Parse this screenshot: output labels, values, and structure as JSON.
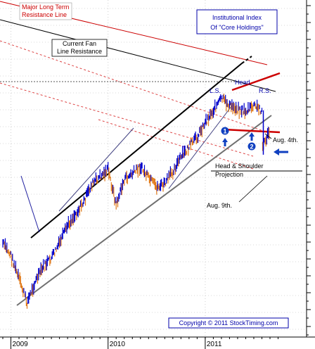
{
  "chart_data": {
    "type": "line",
    "title": "Institutional Index Of \"Core Holdings\"",
    "title_lines": [
      "Institutional Index",
      "Of \"Core Holdings\""
    ],
    "x_tick_labels": [
      "2009",
      "2010",
      "2011"
    ],
    "x_range": [
      "2008-12",
      "2011-09"
    ],
    "grid": "dotted",
    "series": [
      {
        "color": "#0000cc",
        "down_color": "#e07818",
        "points": [
          [
            "2008-12",
            0.5
          ],
          [
            "2009-01",
            0.42
          ],
          [
            "2009-02",
            0.26
          ],
          [
            "2009-03",
            0.1
          ],
          [
            "2009-04",
            0.24
          ],
          [
            "2009-05",
            0.34
          ],
          [
            "2009-06",
            0.4
          ],
          [
            "2009-07",
            0.5
          ],
          [
            "2009-08",
            0.62
          ],
          [
            "2009-09",
            0.7
          ],
          [
            "2009-10",
            0.78
          ],
          [
            "2009-11",
            0.9
          ],
          [
            "2009-12",
            0.95
          ],
          [
            "2010-01",
            1.0
          ],
          [
            "2010-02",
            0.76
          ],
          [
            "2010-03",
            0.93
          ],
          [
            "2010-04",
            0.97
          ],
          [
            "2010-05",
            1.02
          ],
          [
            "2010-06",
            0.94
          ],
          [
            "2010-07",
            0.88
          ],
          [
            "2010-08",
            0.9
          ],
          [
            "2010-09",
            0.99
          ],
          [
            "2010-10",
            1.08
          ],
          [
            "2010-11",
            1.15
          ],
          [
            "2010-12",
            1.22
          ],
          [
            "2011-01",
            1.32
          ],
          [
            "2011-02",
            1.4
          ],
          [
            "2011-03",
            1.48
          ],
          [
            "2011-04",
            1.43
          ],
          [
            "2011-05",
            1.41
          ],
          [
            "2011-06",
            1.39
          ],
          [
            "2011-07",
            1.43
          ],
          [
            "2011-08",
            1.4
          ],
          [
            "2011-08",
            1.16
          ],
          [
            "2011-09",
            1.26
          ]
        ]
      }
    ],
    "annotations": {
      "major_resistance": [
        "Major Long Term",
        "Resistance Line"
      ],
      "fan_resistance": [
        "Current Fan",
        "Line Resistance"
      ],
      "head": "Head",
      "left_shoulder": "L.S.",
      "right_shoulder": "R.S.",
      "marker_1": "1",
      "marker_2": "2",
      "aug4": "Aug. 4th.",
      "hs_projection": [
        "Head & Shoulder",
        "Projection"
      ],
      "aug9": "Aug. 9th.",
      "copyright": "Copyright © 2011 StockTiming.com"
    },
    "colors": {
      "price_up": "#0000cc",
      "price_down": "#e07818",
      "trend_black": "#000000",
      "trend_gray": "#707070",
      "resistance_red": "#cc0000",
      "fan_red": "#dd4444",
      "annotation_blue": "#0000aa",
      "arrow_blue": "#1040c0"
    }
  }
}
